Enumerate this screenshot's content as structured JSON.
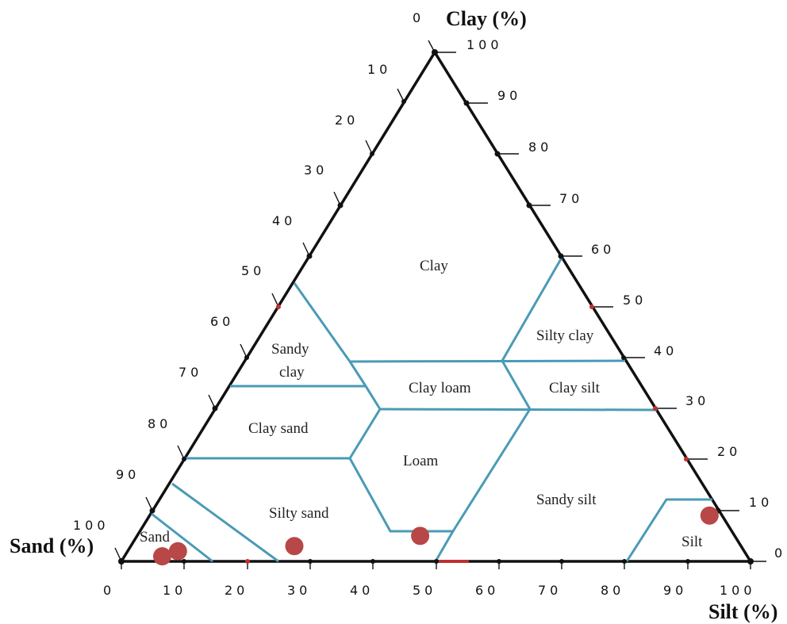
{
  "diagram": {
    "axis_titles": {
      "clay": "Clay (%)",
      "sand": "Sand (%)",
      "silt": "Silt (%)"
    },
    "clay_ticks": [
      "100",
      "90",
      "80",
      "70",
      "60",
      "50",
      "40",
      "30",
      "20",
      "10"
    ],
    "clay_zero": "0",
    "sand_ticks": [
      "10",
      "20",
      "30",
      "40",
      "50",
      "60",
      "70",
      "80",
      "90",
      "100"
    ],
    "sand_zero": "0",
    "silt_ticks": [
      "0",
      "10",
      "20",
      "30",
      "40",
      "50",
      "60",
      "70",
      "80",
      "90",
      "100"
    ],
    "regions": {
      "clay": "Clay",
      "silty_clay": "Silty clay",
      "sandy_clay_1": "Sandy",
      "sandy_clay_2": "clay",
      "clay_loam": "Clay loam",
      "clay_silt": "Clay silt",
      "clay_sand": "Clay sand",
      "loam": "Loam",
      "silty_sand": "Silty sand",
      "sandy_silt": "Sandy silt",
      "sand": "Sand",
      "silt": "Silt"
    },
    "colors": {
      "triangle": "#111111",
      "boundary": "#4a9bb5",
      "sample": "#b84747",
      "tick_mark": "#111111"
    },
    "samples": [
      {
        "clay": 1,
        "silt": 6
      },
      {
        "clay": 2,
        "silt": 8
      },
      {
        "clay": 3,
        "silt": 26
      },
      {
        "clay": 5,
        "silt": 45
      },
      {
        "clay": 9,
        "silt": 89
      }
    ]
  }
}
